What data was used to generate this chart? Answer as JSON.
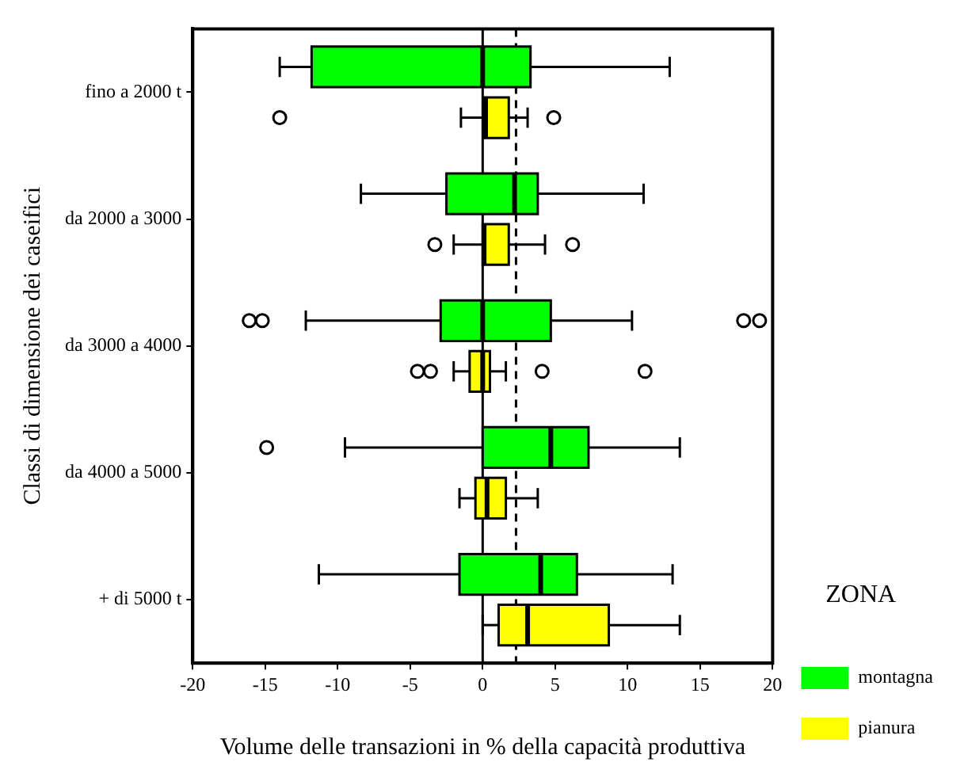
{
  "chart_data": {
    "type": "box",
    "orientation": "horizontal",
    "xlabel": "Volume delle transazioni in % della capacità produttiva",
    "ylabel": "Classi di dimensione dei caseifici",
    "legend_title": "ZONA",
    "legend": "right",
    "grid": false,
    "categories": [
      "fino a 2000 t",
      "da 2000 a 3000",
      "da 3000 a 4000",
      "da 4000 a 5000",
      "+ di 5000 t"
    ],
    "xlim": [
      -20,
      20
    ],
    "xticks": [
      -20,
      -15,
      -10,
      -5,
      0,
      5,
      10,
      15,
      20
    ],
    "ref_lines": [
      {
        "axis": "x",
        "value": 0,
        "color": "#000000",
        "line_style": "solid"
      },
      {
        "axis": "x",
        "value": 2.3,
        "color": "#000000",
        "line_style": "dashed"
      }
    ],
    "series": [
      {
        "name": "montagna",
        "color": "#00ff00",
        "boxes": [
          {
            "low": -14,
            "q1": -11.8,
            "median": 0,
            "q3": 3.3,
            "high": 12.9
          },
          {
            "low": -8.4,
            "q1": -2.5,
            "median": 2.2,
            "q3": 3.8,
            "high": 11.1
          },
          {
            "low": -12.2,
            "q1": -2.9,
            "median": 0,
            "q3": 4.7,
            "high": 10.3,
            "outliers": [
              -16.1,
              -15.2,
              18,
              19.1
            ]
          },
          {
            "low": -9.5,
            "q1": 0,
            "median": 4.7,
            "q3": 7.3,
            "high": 13.6,
            "outliers": [
              -14.9
            ]
          },
          {
            "low": -11.3,
            "q1": -1.6,
            "median": 4,
            "q3": 6.5,
            "high": 13.1
          }
        ]
      },
      {
        "name": "pianura",
        "color": "#ffff00",
        "boxes": [
          {
            "low": -1.5,
            "q1": 0.1,
            "median": 0.2,
            "q3": 1.8,
            "high": 3.1,
            "outliers": [
              -14,
              4.9
            ]
          },
          {
            "low": -2,
            "q1": 0,
            "median": 0.1,
            "q3": 1.8,
            "high": 4.3,
            "outliers": [
              -3.3,
              6.2
            ]
          },
          {
            "low": -2,
            "q1": -0.9,
            "median": 0,
            "q3": 0.5,
            "high": 1.6,
            "outliers": [
              -4.5,
              -3.6,
              4.1,
              11.2
            ]
          },
          {
            "low": -1.6,
            "q1": -0.5,
            "median": 0.3,
            "q3": 1.6,
            "high": 3.8
          },
          {
            "low": 0,
            "q1": 1.1,
            "median": 3.1,
            "q3": 8.7,
            "high": 13.6
          }
        ]
      }
    ]
  }
}
